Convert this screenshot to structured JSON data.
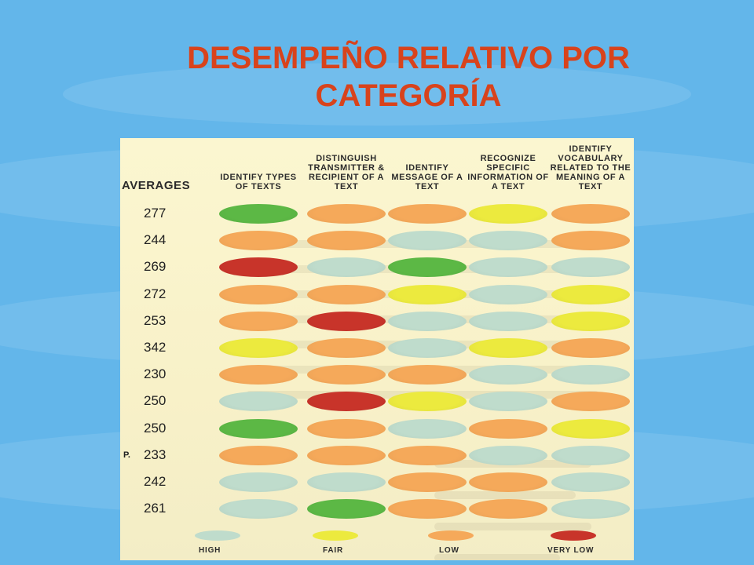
{
  "slide": {
    "title": "DESEMPEÑO RELATIVO POR CATEGORÍA"
  },
  "chart": {
    "averages_label": "AVERAGES",
    "columns": [
      "IDENTIFY TYPES OF TEXTS",
      "DISTINGUISH TRANSMITTER & RECIPIENT OF A TEXT",
      "IDENTIFY MESSAGE OF A TEXT",
      "RECOGNIZE SPECIFIC INFORMATION OF A TEXT",
      "IDENTIFY VOCABULARY RELATED TO THE MEANING OF A TEXT"
    ],
    "rows": [
      {
        "prefix": "",
        "average": "277",
        "levels": [
          "high-green",
          "low",
          "low",
          "fair",
          "low"
        ]
      },
      {
        "prefix": "",
        "average": "244",
        "levels": [
          "low",
          "low",
          "high",
          "high",
          "low"
        ]
      },
      {
        "prefix": "",
        "average": "269",
        "levels": [
          "very-low",
          "high",
          "high-green",
          "high",
          "high"
        ]
      },
      {
        "prefix": "",
        "average": "272",
        "levels": [
          "low",
          "low",
          "fair",
          "high",
          "fair"
        ]
      },
      {
        "prefix": "",
        "average": "253",
        "levels": [
          "low",
          "very-low",
          "high",
          "high",
          "fair"
        ]
      },
      {
        "prefix": "",
        "average": "342",
        "levels": [
          "fair",
          "low",
          "high",
          "fair",
          "low"
        ]
      },
      {
        "prefix": "",
        "average": "230",
        "levels": [
          "low",
          "low",
          "low",
          "high",
          "high"
        ]
      },
      {
        "prefix": "",
        "average": "250",
        "levels": [
          "high",
          "very-low",
          "fair",
          "high",
          "low"
        ]
      },
      {
        "prefix": "",
        "average": "250",
        "levels": [
          "high-green",
          "low",
          "high",
          "low",
          "fair"
        ]
      },
      {
        "prefix": "P.",
        "average": "233",
        "levels": [
          "low",
          "low",
          "low",
          "high",
          "high"
        ]
      },
      {
        "prefix": "",
        "average": "242",
        "levels": [
          "high",
          "high",
          "low",
          "low",
          "high"
        ]
      },
      {
        "prefix": "",
        "average": "261",
        "levels": [
          "high",
          "high-green",
          "low",
          "low",
          "high"
        ]
      }
    ],
    "legend": [
      {
        "label": "HIGH",
        "level": "high"
      },
      {
        "label": "FAIR",
        "level": "fair"
      },
      {
        "label": "LOW",
        "level": "low"
      },
      {
        "label": "VERY LOW",
        "level": "very-low"
      }
    ],
    "colors": {
      "high": "#bfdccc",
      "high-green": "#5cb845",
      "fair": "#ecea3e",
      "low": "#f5a95a",
      "very-low": "#c8342a"
    }
  }
}
